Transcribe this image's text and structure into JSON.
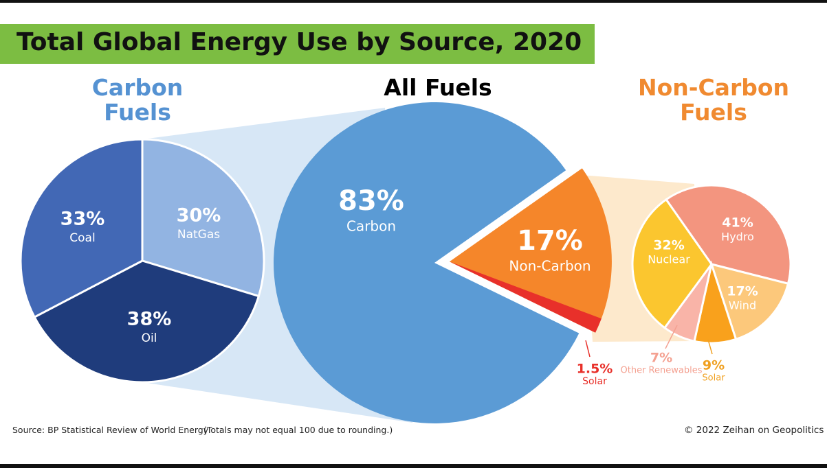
{
  "title": "Total Global Energy Use by Source, 2020",
  "chart_data": [
    {
      "type": "pie",
      "title": "Carbon Fuels",
      "title_color": "#5592d2",
      "categories": [
        "NatGas",
        "Oil",
        "Coal"
      ],
      "values": [
        30,
        38,
        33
      ],
      "value_labels": [
        "30%",
        "38%",
        "33%"
      ],
      "colors": [
        "#92b4e2",
        "#1f3c7c",
        "#4268b5"
      ]
    },
    {
      "type": "pie",
      "title": "All Fuels",
      "title_color": "#000000",
      "categories": [
        "Carbon",
        "Non-Carbon"
      ],
      "values": [
        83,
        17
      ],
      "value_labels": [
        "83%",
        "17%"
      ],
      "colors": [
        "#5b9bd5",
        "#f5862a"
      ],
      "highlight": {
        "name": "Solar",
        "value": 1.5,
        "value_label": "1.5%",
        "color": "#e8302a"
      }
    },
    {
      "type": "pie",
      "title": "Non-Carbon Fuels",
      "title_color": "#f08a30",
      "categories": [
        "Hydro",
        "Wind",
        "Solar",
        "Other Renewables",
        "Nuclear"
      ],
      "values": [
        41,
        17,
        9,
        7,
        32
      ],
      "value_labels": [
        "41%",
        "17%",
        "9%",
        "7%",
        "32%"
      ],
      "colors": [
        "#f3957f",
        "#fcc87b",
        "#f9a11c",
        "#f9b4a8",
        "#fbc62f"
      ]
    }
  ],
  "source": "Source: BP Statistical Review of World Energy",
  "note": "(Totals may not equal 100 due to rounding.)",
  "copyright": "© 2022 Zeihan on Geopolitics"
}
